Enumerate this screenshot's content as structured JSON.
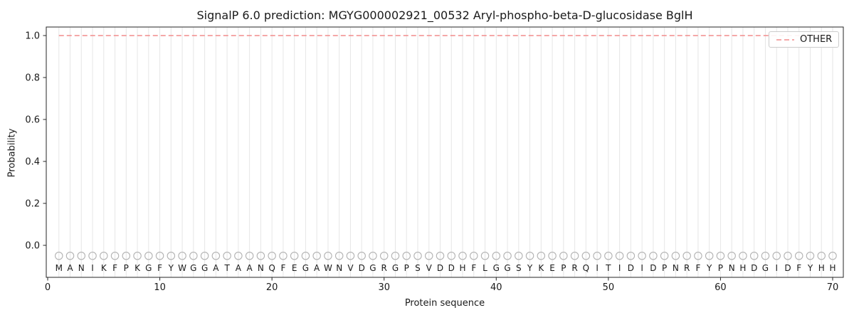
{
  "chart_data": {
    "type": "line",
    "title": "SignalP 6.0 prediction: MGYG000002921_00532 Aryl-phospho-beta-D-glucosidase BglH",
    "xlabel": "Protein sequence",
    "ylabel": "Probability",
    "x_ticks": [
      0,
      10,
      20,
      30,
      40,
      50,
      60,
      70
    ],
    "y_ticks": [
      "0.0",
      "0.2",
      "0.4",
      "0.6",
      "0.8",
      "1.0"
    ],
    "xlim": [
      0,
      70.9
    ],
    "ylim": [
      -0.15,
      1.04
    ],
    "grid": true,
    "legend_position": "upper right",
    "series": [
      {
        "name": "OTHER",
        "style": "dashed",
        "color": "#f28b8b",
        "x": [
          1,
          2,
          3,
          4,
          5,
          6,
          7,
          8,
          9,
          10,
          11,
          12,
          13,
          14,
          15,
          16,
          17,
          18,
          19,
          20,
          21,
          22,
          23,
          24,
          25,
          26,
          27,
          28,
          29,
          30,
          31,
          32,
          33,
          34,
          35,
          36,
          37,
          38,
          39,
          40,
          41,
          42,
          43,
          44,
          45,
          46,
          47,
          48,
          49,
          50,
          51,
          52,
          53,
          54,
          55,
          56,
          57,
          58,
          59,
          60,
          61,
          62,
          63,
          64,
          65,
          66,
          67,
          68,
          69,
          70
        ],
        "values": [
          1.0,
          1.0,
          1.0,
          1.0,
          1.0,
          1.0,
          1.0,
          1.0,
          1.0,
          1.0,
          1.0,
          1.0,
          1.0,
          1.0,
          1.0,
          1.0,
          1.0,
          1.0,
          1.0,
          1.0,
          1.0,
          1.0,
          1.0,
          1.0,
          1.0,
          1.0,
          1.0,
          1.0,
          1.0,
          1.0,
          1.0,
          1.0,
          1.0,
          1.0,
          1.0,
          1.0,
          1.0,
          1.0,
          1.0,
          1.0,
          1.0,
          1.0,
          1.0,
          1.0,
          1.0,
          1.0,
          1.0,
          1.0,
          1.0,
          1.0,
          1.0,
          1.0,
          1.0,
          1.0,
          1.0,
          1.0,
          1.0,
          1.0,
          1.0,
          1.0,
          1.0,
          1.0,
          1.0,
          1.0,
          1.0,
          1.0,
          1.0,
          1.0,
          1.0,
          1.0
        ]
      }
    ],
    "sequence": [
      "M",
      "A",
      "N",
      "I",
      "K",
      "F",
      "P",
      "K",
      "G",
      "F",
      "Y",
      "W",
      "G",
      "G",
      "A",
      "T",
      "A",
      "A",
      "N",
      "Q",
      "F",
      "E",
      "G",
      "A",
      "W",
      "N",
      "V",
      "D",
      "G",
      "R",
      "G",
      "P",
      "S",
      "V",
      "D",
      "D",
      "H",
      "F",
      "L",
      "G",
      "G",
      "S",
      "Y",
      "K",
      "E",
      "P",
      "R",
      "Q",
      "I",
      "T",
      "I",
      "D",
      "I",
      "D",
      "P",
      "N",
      "R",
      "F",
      "Y",
      "P",
      "N",
      "H",
      "D",
      "G",
      "I",
      "D",
      "F",
      "Y",
      "H",
      "H"
    ],
    "marker_y": -0.05,
    "colors": {
      "grid": "#e6e6e6",
      "marker": "#b3b3b3",
      "axis": "#262626",
      "text": "#1a1a1a"
    }
  }
}
